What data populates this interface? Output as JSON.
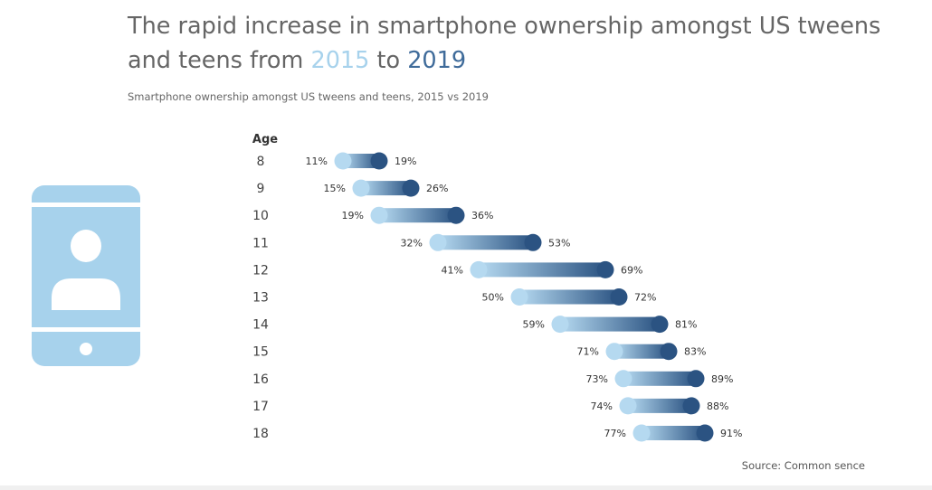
{
  "title": {
    "prefix": "The rapid increase in smartphone ownership amongst US tweens and teens from ",
    "year1": "2015",
    "middle": " to ",
    "year2": "2019"
  },
  "subtitle": "Smartphone ownership amongst US tweens and teens, 2015 vs 2019",
  "source": "Source: Common sence",
  "icon": "smartphone-user-icon",
  "colors": {
    "color_2015": "#b5d9f0",
    "color_2019": "#2b5382",
    "text": "#333333",
    "icon": "#a7d2ec"
  },
  "chart_data": {
    "type": "dumbbell",
    "row_header": "Age",
    "categories": [
      "8",
      "9",
      "10",
      "11",
      "12",
      "13",
      "14",
      "15",
      "16",
      "17",
      "18"
    ],
    "series": [
      {
        "name": "2015",
        "values": [
          11,
          15,
          19,
          32,
          41,
          50,
          59,
          71,
          73,
          74,
          77
        ]
      },
      {
        "name": "2019",
        "values": [
          19,
          26,
          36,
          53,
          69,
          72,
          81,
          83,
          89,
          88,
          91
        ]
      }
    ],
    "value_suffix": "%",
    "grid": false
  }
}
